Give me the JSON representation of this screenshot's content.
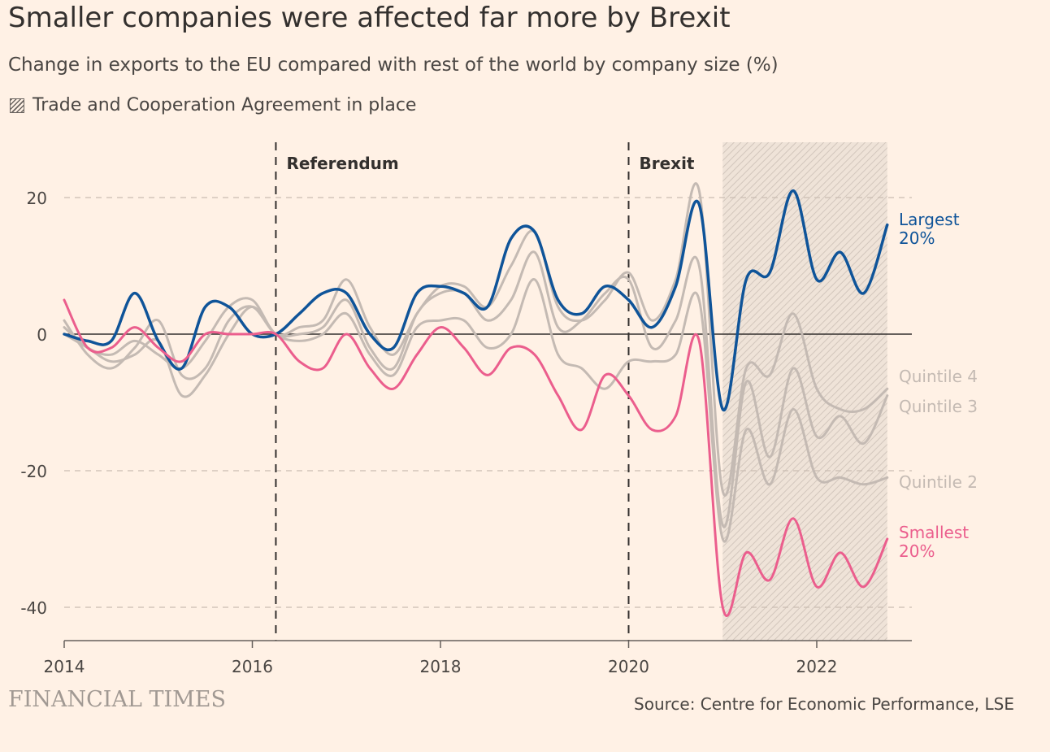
{
  "title": "Smaller companies were affected far more by Brexit",
  "subtitle": "Change in exports to the EU compared with rest of the world by company size (%)",
  "legend_label": "Trade and Cooperation Agreement in place",
  "brand": "FINANCIAL TIMES",
  "source": "Source: Centre for Economic Performance, LSE",
  "colors": {
    "background": "#fff1e5",
    "largest": "#0f5499",
    "smallest": "#eb5e8d",
    "quintile": "#c4bab3",
    "text": "#33302e"
  },
  "chart_data": {
    "type": "line",
    "x_unit": "quarter",
    "xlim": [
      2014.0,
      2023.0
    ],
    "ylim": [
      -45,
      28
    ],
    "yticks": [
      20,
      0,
      -20,
      -40
    ],
    "xticks": [
      2014,
      2016,
      2018,
      2020,
      2022
    ],
    "grid": "horizontal dashed",
    "annotations": [
      {
        "type": "vline",
        "x": 2016.25,
        "label": "Referendum"
      },
      {
        "type": "vline",
        "x": 2020.0,
        "label": "Brexit"
      },
      {
        "type": "shaded",
        "x_start": 2021.0,
        "x_end": 2022.75
      }
    ],
    "x": [
      2014.0,
      2014.25,
      2014.5,
      2014.75,
      2015.0,
      2015.25,
      2015.5,
      2015.75,
      2016.0,
      2016.25,
      2016.5,
      2016.75,
      2017.0,
      2017.25,
      2017.5,
      2017.75,
      2018.0,
      2018.25,
      2018.5,
      2018.75,
      2019.0,
      2019.25,
      2019.5,
      2019.75,
      2020.0,
      2020.25,
      2020.5,
      2020.75,
      2021.0,
      2021.25,
      2021.5,
      2021.75,
      2022.0,
      2022.25,
      2022.5,
      2022.75
    ],
    "series": [
      {
        "name": "Quintile 4",
        "values": [
          1,
          -2,
          -3,
          -1,
          -3,
          -5,
          -1,
          4,
          5,
          0,
          1,
          2,
          8,
          1,
          -3,
          3,
          7,
          7,
          4,
          10,
          15,
          4,
          2,
          5,
          9,
          2,
          8,
          21,
          -23,
          -5,
          -6,
          3,
          -8,
          -11,
          -11,
          -8
        ]
      },
      {
        "name": "Quintile 3",
        "values": [
          2,
          -3,
          -5,
          -2,
          2,
          -6,
          -5,
          2,
          4,
          0,
          0,
          1,
          5,
          -2,
          -5,
          3,
          6,
          6,
          2,
          5,
          12,
          1,
          2,
          6,
          8,
          -2,
          2,
          10,
          -28,
          -7,
          -18,
          -5,
          -15,
          -12,
          -16,
          -9
        ]
      },
      {
        "name": "Quintile 2",
        "values": [
          0,
          -2,
          -4,
          -3,
          -1,
          -9,
          -6,
          0,
          4,
          0,
          -1,
          0,
          3,
          -3,
          -6,
          1,
          2,
          2,
          -2,
          0,
          8,
          -3,
          -5,
          -8,
          -4,
          -4,
          -3,
          5,
          -30,
          -14,
          -22,
          -11,
          -21,
          -21,
          -22,
          -21
        ]
      },
      {
        "name": "Largest 20%",
        "values": [
          0,
          -1,
          -1,
          6,
          -1,
          -5,
          4,
          4,
          0,
          0,
          3,
          6,
          6,
          0,
          -2,
          6,
          7,
          6,
          4,
          14,
          15,
          5,
          3,
          7,
          5,
          1,
          7,
          19,
          -11,
          8,
          9,
          21,
          8,
          12,
          6,
          16
        ]
      },
      {
        "name": "Smallest 20%",
        "values": [
          5,
          -2,
          -2,
          1,
          -2,
          -4,
          0,
          0,
          0,
          0,
          -4,
          -5,
          0,
          -5,
          -8,
          -3,
          1,
          -2,
          -6,
          -2,
          -3,
          -9,
          -14,
          -6,
          -9,
          -14,
          -12,
          -1,
          -40,
          -32,
          -36,
          -27,
          -37,
          -32,
          -37,
          -30
        ]
      }
    ],
    "labels": {
      "largest": [
        "Largest",
        "20%"
      ],
      "q4": "Quintile 4",
      "q3": "Quintile 3",
      "q2": "Quintile 2",
      "smallest": [
        "Smallest",
        "20%"
      ]
    }
  }
}
